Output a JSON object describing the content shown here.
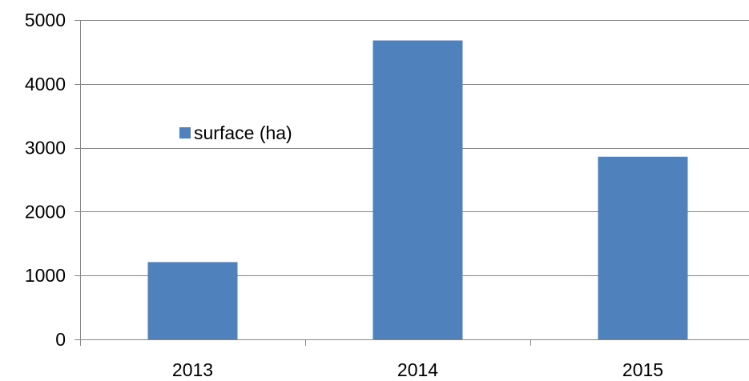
{
  "chart_data": {
    "type": "bar",
    "categories": [
      "2013",
      "2014",
      "2015"
    ],
    "series": [
      {
        "name": "surface (ha)",
        "values": [
          1210,
          4680,
          2860
        ]
      }
    ],
    "title": "",
    "xlabel": "",
    "ylabel": "",
    "ylim": [
      0,
      5000
    ],
    "yticks": [
      0,
      1000,
      2000,
      3000,
      4000,
      5000
    ],
    "grid": true,
    "legend": {
      "placement": "left-middle inside plot"
    },
    "colors": {
      "bar": "#4F81BD",
      "gridline": "#868686",
      "axis": "#868686",
      "text": "#000000"
    }
  }
}
